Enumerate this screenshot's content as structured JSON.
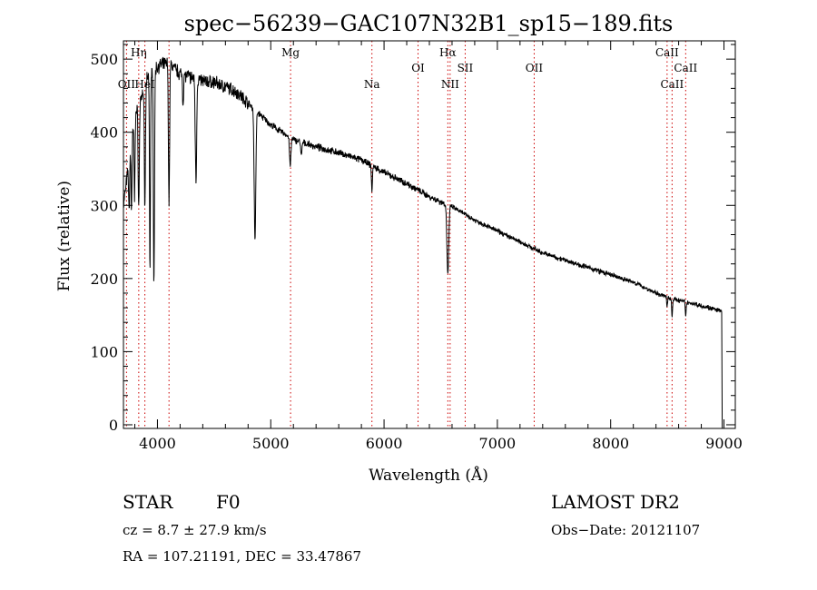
{
  "chart_data": {
    "type": "line",
    "title": "spec−56239−GAC107N32B1_sp15−189.fits",
    "xlabel": "Wavelength (Å)",
    "ylabel": "Flux (relative)",
    "xlim": [
      3700,
      9100
    ],
    "ylim": [
      -5,
      525
    ],
    "xticks": [
      4000,
      5000,
      6000,
      7000,
      8000,
      9000
    ],
    "yticks": [
      0,
      100,
      200,
      300,
      400,
      500
    ],
    "continuum": {
      "x": [
        3700,
        3800,
        3900,
        4000,
        4100,
        4200,
        4300,
        4400,
        4500,
        4600,
        4700,
        4800,
        4900,
        5000,
        5200,
        5400,
        5600,
        5800,
        6000,
        6200,
        6400,
        6600,
        6800,
        7000,
        7200,
        7400,
        7600,
        7800,
        8000,
        8200,
        8400,
        8600,
        8800,
        8980
      ],
      "y": [
        300,
        420,
        470,
        490,
        495,
        480,
        475,
        470,
        468,
        462,
        455,
        440,
        425,
        410,
        390,
        380,
        372,
        362,
        345,
        330,
        312,
        298,
        280,
        265,
        250,
        235,
        225,
        215,
        205,
        195,
        180,
        170,
        163,
        155
      ]
    },
    "absorption": [
      {
        "w": 3750,
        "d": 70,
        "s": 4
      },
      {
        "w": 3771,
        "d": 90,
        "s": 4
      },
      {
        "w": 3798,
        "d": 110,
        "s": 4
      },
      {
        "w": 3835,
        "d": 140,
        "s": 5
      },
      {
        "w": 3889,
        "d": 170,
        "s": 5
      },
      {
        "w": 3934,
        "d": 270,
        "s": 4
      },
      {
        "w": 3969,
        "d": 290,
        "s": 5
      },
      {
        "w": 4102,
        "d": 190,
        "s": 5
      },
      {
        "w": 4226,
        "d": 40,
        "s": 4
      },
      {
        "w": 4340,
        "d": 140,
        "s": 6
      },
      {
        "w": 4861,
        "d": 180,
        "s": 7
      },
      {
        "w": 5172,
        "d": 40,
        "s": 6
      },
      {
        "w": 5270,
        "d": 20,
        "s": 5
      },
      {
        "w": 5893,
        "d": 35,
        "s": 4
      },
      {
        "w": 6563,
        "d": 95,
        "s": 8
      },
      {
        "w": 8498,
        "d": 15,
        "s": 4
      },
      {
        "w": 8542,
        "d": 25,
        "s": 4
      },
      {
        "w": 8662,
        "d": 20,
        "s": 4
      }
    ],
    "lines": [
      {
        "label": "Hη",
        "w": 3835,
        "row": 1
      },
      {
        "label": "OII",
        "w": 3727,
        "row": 3
      },
      {
        "label": "HeI",
        "w": 3889,
        "row": 3
      },
      {
        "label": "Mg",
        "w": 5175,
        "row": 1
      },
      {
        "label": "Na",
        "w": 5893,
        "row": 3
      },
      {
        "label": "OI",
        "w": 6300,
        "row": 2
      },
      {
        "label": "Hα",
        "w": 6563,
        "row": 1
      },
      {
        "label": "NII",
        "w": 6583,
        "row": 3
      },
      {
        "label": "SII",
        "w": 6716,
        "row": 2
      },
      {
        "label": "OII",
        "w": 7325,
        "row": 2
      },
      {
        "label": "CaII",
        "w": 8498,
        "row": 1
      },
      {
        "label": "CaII",
        "w": 8542,
        "row": 3
      },
      {
        "label": "CaII",
        "w": 8662,
        "row": 2
      }
    ],
    "vlines": [
      3727,
      3835,
      3889,
      4102,
      5175,
      5893,
      6300,
      6563,
      6583,
      6716,
      7325,
      8498,
      8542,
      8662
    ],
    "vline_color": "#cc0000",
    "line_color": "#000000"
  },
  "info": {
    "object_class": "STAR",
    "subclass": "F0",
    "survey": "LAMOST DR2",
    "cz": "cz = 8.7 ± 27.9 km/s",
    "obs_date": "Obs−Date: 20121107",
    "coords": "RA = 107.21191, DEC =  33.47867"
  }
}
